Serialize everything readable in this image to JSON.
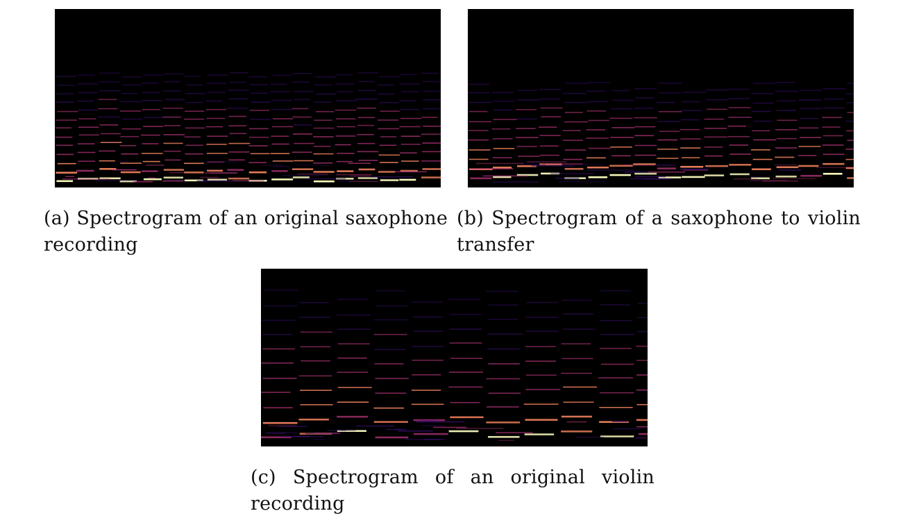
{
  "figures": [
    {
      "id": "a",
      "caption_line1": "(a) Spectrogram of an original saxophone",
      "caption_line2": "recording",
      "palette": {
        "background": "#000000",
        "low": "#3b0f70",
        "mid": "#b5367a",
        "high": "#fb8761",
        "peak": "#fcfdbf"
      }
    },
    {
      "id": "b",
      "caption_line1": "(b) Spectrogram of a saxophone to violin",
      "caption_line2": "transfer",
      "palette": {
        "background": "#000000",
        "low": "#3b0f70",
        "mid": "#b5367a",
        "high": "#fb8761",
        "peak": "#fcfdbf"
      }
    },
    {
      "id": "c",
      "caption_line1": "(c) Spectrogram of an original violin",
      "caption_line2": "recording",
      "palette": {
        "background": "#000000",
        "low": "#3b0f70",
        "mid": "#b5367a",
        "high": "#fb8761",
        "peak": "#fcfdbf"
      }
    }
  ]
}
